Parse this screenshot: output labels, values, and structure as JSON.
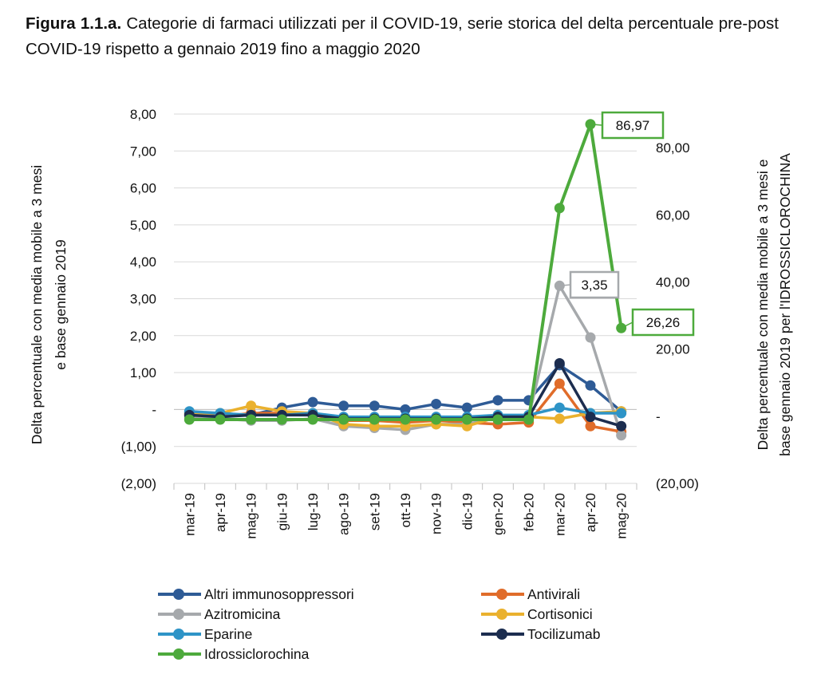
{
  "caption": {
    "prefix": "Figura 1.1.a.",
    "text": " Categorie di farmaci utilizzati per il COVID-19, serie storica del delta percentuale pre-post COVID-19 rispetto a gennaio 2019 fino a maggio 2020"
  },
  "chart_data": {
    "type": "line",
    "x": [
      "mar-19",
      "apr-19",
      "mag-19",
      "giu-19",
      "lug-19",
      "ago-19",
      "set-19",
      "ott-19",
      "nov-19",
      "dic-19",
      "gen-20",
      "feb-20",
      "mar-20",
      "apr-20",
      "mag-20"
    ],
    "ylabel": "Delta percentuale con media mobile a 3 mesi e base gennaio 2019",
    "y2label": "Delta percentuale con media mobile a 3 mesi e base gennaio 2019 per l'IDROSSICLOROCHINA",
    "ylim": [
      -2,
      8
    ],
    "y2lim": [
      -20,
      90
    ],
    "yticks": [
      "8,00",
      "7,00",
      "6,00",
      "5,00",
      "4,00",
      "3,00",
      "2,00",
      "1,00",
      "-",
      "(1,00)",
      "(2,00)"
    ],
    "y2ticks": [
      "80,00",
      "60,00",
      "40,00",
      "20,00",
      "-",
      "(20,00)"
    ],
    "grid": "horizontal",
    "legend": "bottom",
    "series": [
      {
        "name": "Altri immunosoppressori",
        "axis": "left",
        "color": "#2e5b96",
        "values": [
          -0.1,
          -0.15,
          -0.15,
          0.05,
          0.2,
          0.1,
          0.1,
          0.0,
          0.15,
          0.05,
          0.25,
          0.25,
          1.2,
          0.65,
          -0.05
        ]
      },
      {
        "name": "Antivirali",
        "axis": "left",
        "color": "#e06c2a",
        "values": [
          -0.15,
          -0.2,
          -0.1,
          -0.1,
          -0.15,
          -0.3,
          -0.3,
          -0.35,
          -0.3,
          -0.35,
          -0.4,
          -0.35,
          0.7,
          -0.45,
          -0.6
        ]
      },
      {
        "name": "Azitromicina",
        "axis": "left",
        "color": "#a6a9ac",
        "values": [
          -0.2,
          -0.25,
          -0.3,
          -0.3,
          -0.25,
          -0.45,
          -0.5,
          -0.55,
          -0.4,
          -0.4,
          -0.2,
          -0.2,
          3.35,
          1.95,
          -0.7
        ]
      },
      {
        "name": "Cortisonici",
        "axis": "left",
        "color": "#eab12e",
        "values": [
          -0.1,
          -0.1,
          0.1,
          -0.05,
          -0.1,
          -0.4,
          -0.45,
          -0.45,
          -0.4,
          -0.45,
          -0.2,
          -0.2,
          -0.25,
          -0.1,
          -0.05
        ]
      },
      {
        "name": "Eparine",
        "axis": "left",
        "color": "#2e94c7",
        "values": [
          -0.05,
          -0.1,
          -0.15,
          -0.15,
          -0.1,
          -0.2,
          -0.2,
          -0.2,
          -0.2,
          -0.2,
          -0.15,
          -0.15,
          0.05,
          -0.1,
          -0.1
        ]
      },
      {
        "name": "Tocilizumab",
        "axis": "left",
        "color": "#1c2d4f",
        "values": [
          -0.15,
          -0.2,
          -0.15,
          -0.15,
          -0.15,
          -0.25,
          -0.25,
          -0.25,
          -0.25,
          -0.25,
          -0.2,
          -0.2,
          1.25,
          -0.2,
          -0.45
        ]
      },
      {
        "name": "Idrossiclorochina",
        "axis": "right",
        "color": "#4daa3c",
        "values": [
          -1,
          -1,
          -1,
          -1,
          -1,
          -1,
          -1,
          -1,
          -1,
          -1,
          -1,
          -1,
          62,
          86.97,
          26.26
        ]
      }
    ],
    "annotations": [
      {
        "series": "Idrossiclorochina",
        "index": 13,
        "label": "86,97"
      },
      {
        "series": "Idrossiclorochina",
        "index": 14,
        "label": "26,26"
      },
      {
        "series": "Azitromicina",
        "index": 12,
        "label": "3,35"
      }
    ]
  }
}
